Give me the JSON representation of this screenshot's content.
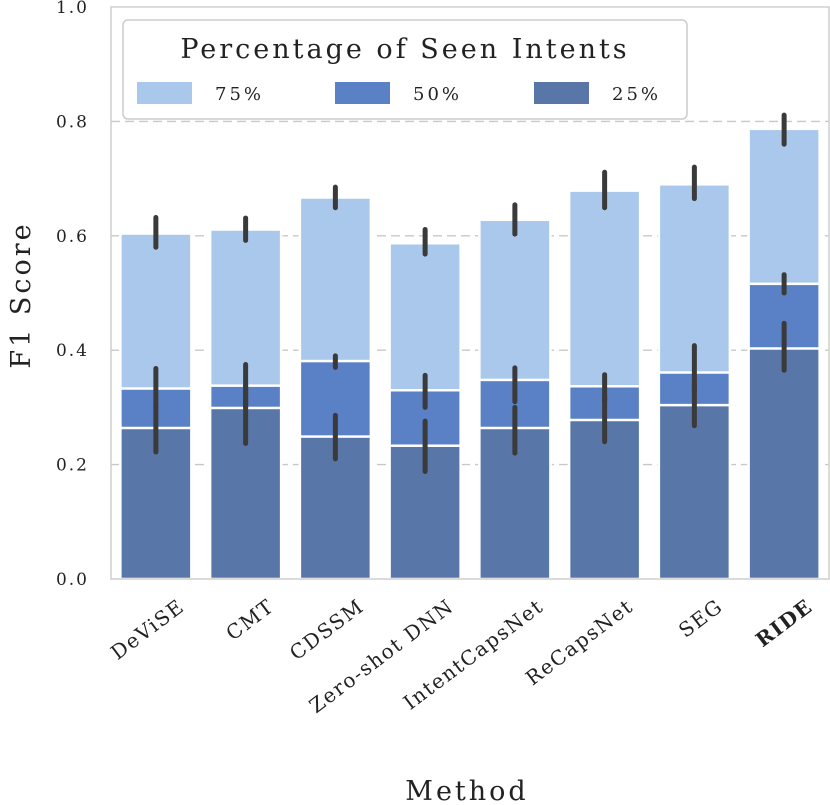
{
  "chart_data": {
    "type": "bar",
    "stacking": "overlay",
    "categories": [
      "DeViSE",
      "CMT",
      "CDSSM",
      "Zero-shot DNN",
      "IntentCapsNet",
      "ReCapsNet",
      "SEG",
      "RIDE"
    ],
    "highlight_category": "RIDE",
    "series": [
      {
        "name": "75%",
        "color": "#a9c8ec",
        "values": [
          0.604,
          0.611,
          0.667,
          0.587,
          0.628,
          0.679,
          0.69,
          0.787
        ],
        "err_low": [
          0.58,
          0.592,
          0.649,
          0.568,
          0.603,
          0.649,
          0.665,
          0.76
        ],
        "err_high": [
          0.632,
          0.631,
          0.685,
          0.611,
          0.654,
          0.711,
          0.72,
          0.811
        ]
      },
      {
        "name": "50%",
        "color": "#5a80c5",
        "values": [
          0.333,
          0.338,
          0.381,
          0.33,
          0.348,
          0.337,
          0.361,
          0.516
        ],
        "err_low": [
          0.3,
          0.3,
          0.37,
          0.3,
          0.31,
          0.31,
          0.33,
          0.5
        ],
        "err_high": [
          0.368,
          0.375,
          0.39,
          0.356,
          0.369,
          0.357,
          0.408,
          0.532
        ]
      },
      {
        "name": "25%",
        "color": "#5876a7",
        "values": [
          0.264,
          0.299,
          0.249,
          0.233,
          0.264,
          0.278,
          0.304,
          0.403
        ],
        "err_low": [
          0.222,
          0.237,
          0.21,
          0.188,
          0.22,
          0.24,
          0.268,
          0.365
        ],
        "err_high": [
          0.3,
          0.34,
          0.286,
          0.276,
          0.3,
          0.32,
          0.34,
          0.447
        ]
      }
    ],
    "title": "",
    "xlabel": "Method",
    "ylabel": "F1 Score",
    "ylim": [
      0.0,
      1.0
    ],
    "yticks": [
      "0.0",
      "0.2",
      "0.4",
      "0.6",
      "0.8",
      "1.0"
    ],
    "grid": true,
    "legend": {
      "title": "Percentage of Seen Intents",
      "placement": "top-left",
      "entries": [
        "75%",
        "50%",
        "25%"
      ]
    }
  }
}
